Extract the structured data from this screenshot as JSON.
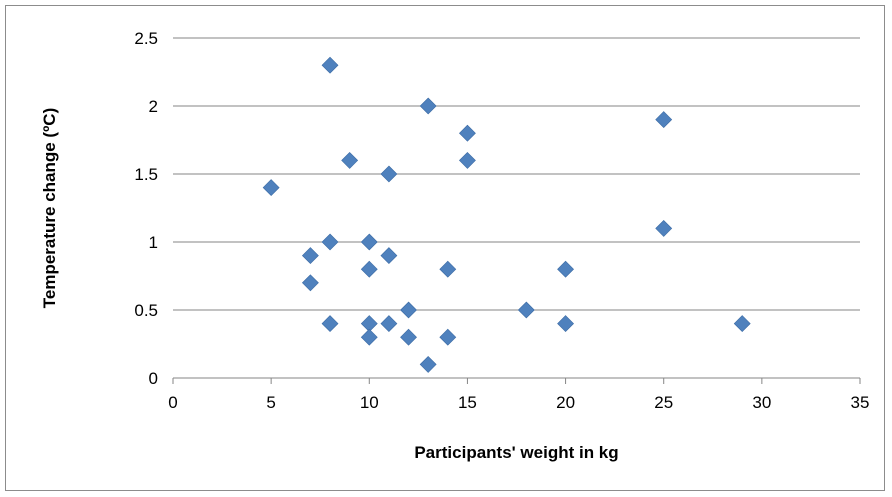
{
  "chart_data": {
    "type": "scatter",
    "title": "",
    "xlabel": "Participants' weight in kg",
    "ylabel": "Temperature change (ºC)",
    "xlim": [
      0,
      35
    ],
    "ylim": [
      0,
      2.5
    ],
    "xticks": [
      0,
      5,
      10,
      15,
      20,
      25,
      30,
      35
    ],
    "yticks": [
      0,
      0.5,
      1,
      1.5,
      2,
      2.5
    ],
    "xtick_labels": [
      "0",
      "5",
      "10",
      "15",
      "20",
      "25",
      "30",
      "35"
    ],
    "ytick_labels": [
      "0",
      "0.5",
      "1",
      "1.5",
      "2",
      "2.5"
    ],
    "grid": "horizontal",
    "legend": "none",
    "marker": "diamond",
    "color": "#4f81bd",
    "points": [
      {
        "x": 5,
        "y": 1.4
      },
      {
        "x": 7,
        "y": 0.9
      },
      {
        "x": 7,
        "y": 0.7
      },
      {
        "x": 8,
        "y": 2.3
      },
      {
        "x": 8,
        "y": 1.0
      },
      {
        "x": 8,
        "y": 0.4
      },
      {
        "x": 9,
        "y": 1.6
      },
      {
        "x": 10,
        "y": 1.0
      },
      {
        "x": 10,
        "y": 0.8
      },
      {
        "x": 10,
        "y": 0.4
      },
      {
        "x": 10,
        "y": 0.3
      },
      {
        "x": 11,
        "y": 1.5
      },
      {
        "x": 11,
        "y": 0.9
      },
      {
        "x": 11,
        "y": 0.4
      },
      {
        "x": 12,
        "y": 0.5
      },
      {
        "x": 12,
        "y": 0.3
      },
      {
        "x": 13,
        "y": 2.0
      },
      {
        "x": 13,
        "y": 0.1
      },
      {
        "x": 14,
        "y": 0.8
      },
      {
        "x": 14,
        "y": 0.3
      },
      {
        "x": 15,
        "y": 1.8
      },
      {
        "x": 15,
        "y": 1.6
      },
      {
        "x": 18,
        "y": 0.5
      },
      {
        "x": 20,
        "y": 0.8
      },
      {
        "x": 20,
        "y": 0.4
      },
      {
        "x": 25,
        "y": 1.9
      },
      {
        "x": 25,
        "y": 1.1
      },
      {
        "x": 29,
        "y": 0.4
      }
    ]
  }
}
